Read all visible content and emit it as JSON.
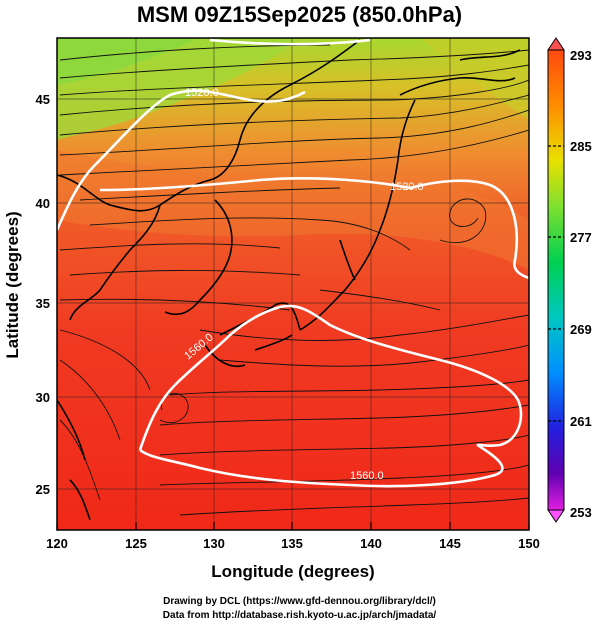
{
  "title": "MSM 09Z15Sep2025 (850.0hPa)",
  "map": {
    "x_axis": {
      "label": "Longitude (degrees)",
      "range": [
        120,
        150
      ],
      "ticks": [
        "120",
        "125",
        "130",
        "135",
        "140",
        "145",
        "150"
      ]
    },
    "y_axis": {
      "label": "Latitude  (degrees)",
      "range": [
        22.5,
        47.5
      ],
      "ticks": [
        "25",
        "30",
        "35",
        "40",
        "45"
      ]
    },
    "contour_labels": [
      "1520.0",
      "1560.0",
      "1560.0",
      "1520.0",
      "1560.0"
    ],
    "colors": {
      "hot": "#f03020",
      "warm": "#f08030",
      "mild": "#c8d020",
      "cool": "#70d840",
      "contour": "#ffffff"
    }
  },
  "colorbar": {
    "tick_labels": [
      "293",
      "285",
      "277",
      "269",
      "261",
      "253"
    ],
    "colors": [
      "#ff5a5a",
      "#ff3a10",
      "#ff9a00",
      "#ffe600",
      "#90e030",
      "#00d040",
      "#00d0b0",
      "#00a0ff",
      "#2040ff",
      "#2000a0",
      "#8000c0",
      "#ff40ff"
    ]
  },
  "credits": {
    "line1": "Drawing by DCL (https://www.gfd-dennou.org/library/dcl/)",
    "line2": "Data from http://database.rish.kyoto-u.ac.jp/arch/jmadata/"
  }
}
